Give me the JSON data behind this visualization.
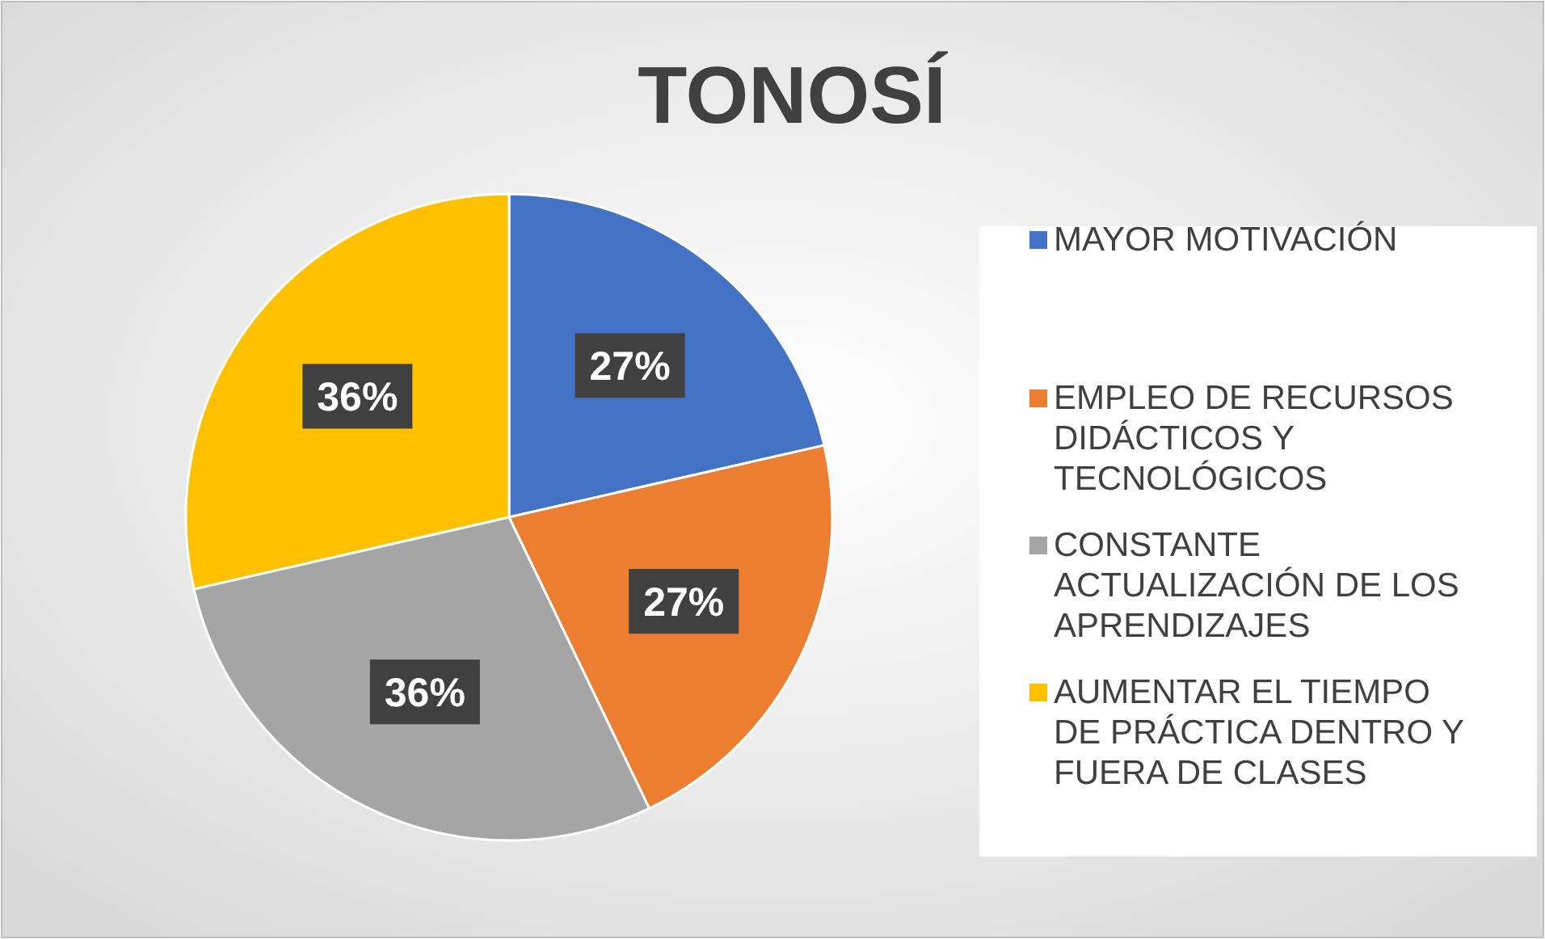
{
  "chart_data": {
    "type": "pie",
    "title": "TONOSÍ",
    "categories": [
      "MAYOR MOTIVACIÓN",
      "EMPLEO DE RECURSOS DIDÁCTICOS Y TECNOLÓGICOS",
      "CONSTANTE ACTUALIZACIÓN DE LOS APRENDIZAJES",
      "AUMENTAR EL TIEMPO DE PRÁCTICA DENTRO Y FUERA DE CLASES"
    ],
    "values": [
      27,
      27,
      36,
      36
    ],
    "value_labels": [
      "27%",
      "27%",
      "36%",
      "36%"
    ],
    "colors": [
      "#4472c4",
      "#ed7d31",
      "#a5a5a5",
      "#ffc000"
    ],
    "legend": "right"
  }
}
